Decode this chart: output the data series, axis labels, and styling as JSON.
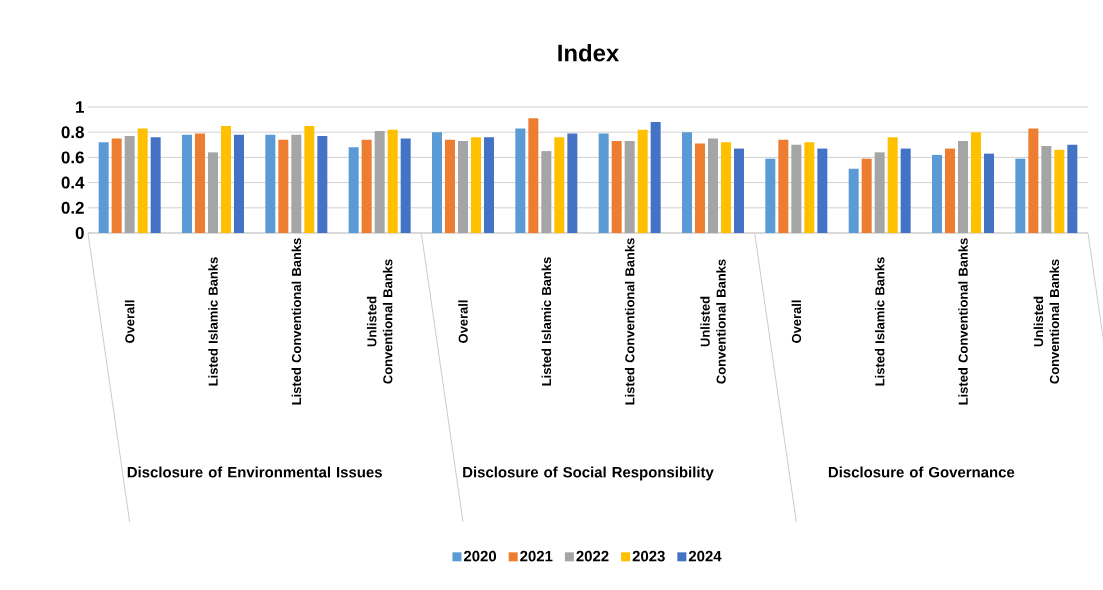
{
  "chart_data": {
    "type": "bar",
    "title": "Index",
    "categories": [
      "Overall",
      "Listed Islamic Banks",
      "Listed Conventional Banks",
      "Unlisted Conventional Banks",
      "Overall",
      "Listed Islamic Banks",
      "Listed Conventional Banks",
      "Unlisted Conventional Banks",
      "Overall",
      "Listed Islamic Banks",
      "Listed Conventional Banks",
      "Unlisted Conventional Banks"
    ],
    "series": [
      {
        "name": "2020",
        "color": "#5b9bd5",
        "values": [
          0.72,
          0.78,
          0.78,
          0.68,
          0.8,
          0.83,
          0.79,
          0.8,
          0.59,
          0.51,
          0.62,
          0.59
        ]
      },
      {
        "name": "2021",
        "color": "#ed7d31",
        "values": [
          0.75,
          0.79,
          0.74,
          0.74,
          0.74,
          0.91,
          0.73,
          0.71,
          0.74,
          0.59,
          0.67,
          0.83
        ]
      },
      {
        "name": "2022",
        "color": "#a5a5a5",
        "values": [
          0.77,
          0.64,
          0.78,
          0.81,
          0.73,
          0.65,
          0.73,
          0.75,
          0.7,
          0.64,
          0.73,
          0.69
        ]
      },
      {
        "name": "2023",
        "color": "#ffc000",
        "values": [
          0.83,
          0.85,
          0.85,
          0.82,
          0.76,
          0.76,
          0.82,
          0.72,
          0.72,
          0.76,
          0.8,
          0.66
        ]
      },
      {
        "name": "2024",
        "color": "#4472c4",
        "values": [
          0.76,
          0.78,
          0.77,
          0.75,
          0.76,
          0.79,
          0.88,
          0.67,
          0.67,
          0.67,
          0.63,
          0.7
        ]
      }
    ],
    "annotations": [
      "Disclosure of Environmental Issues",
      "Disclosure of Social Responsibility",
      "Disclosure of Governance"
    ],
    "ylim": [
      0,
      1
    ],
    "yticks": [
      0,
      0.2,
      0.4,
      0.6,
      0.8,
      1
    ],
    "grid": "y",
    "legend": "bottom"
  }
}
